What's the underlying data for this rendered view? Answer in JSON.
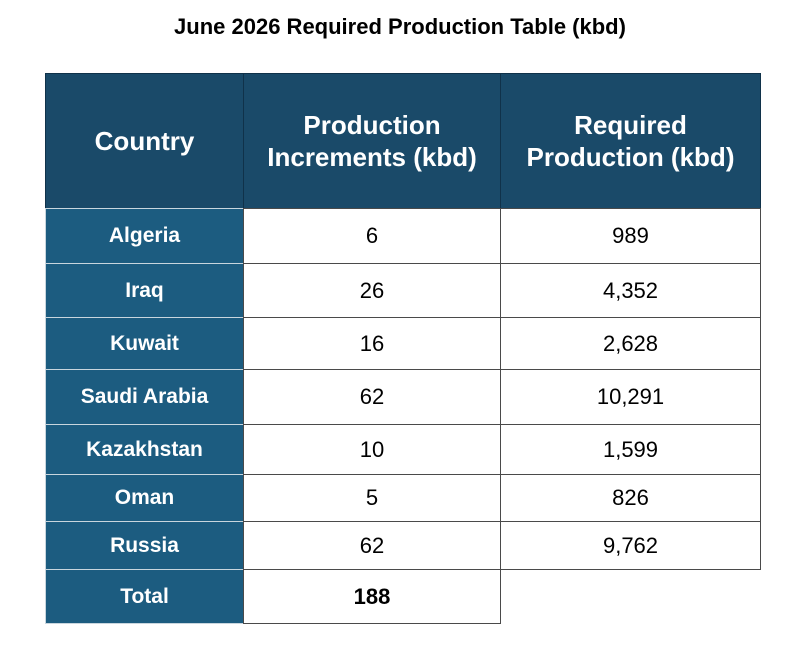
{
  "title": "June 2026 Required Production Table (kbd)",
  "table": {
    "header": [
      "Country",
      "Production Increments (kbd)",
      "Required Production (kbd)"
    ],
    "rows": [
      [
        "Algeria",
        "6",
        "989"
      ],
      [
        "Iraq",
        "26",
        "4,352"
      ],
      [
        "Kuwait",
        "16",
        "2,628"
      ],
      [
        "Saudi Arabia",
        "62",
        "10,291"
      ],
      [
        "Kazakhstan",
        "10",
        "1,599"
      ],
      [
        "Oman",
        "5",
        "826"
      ],
      [
        "Russia",
        "62",
        "9,762"
      ],
      [
        "Total",
        "188"
      ]
    ]
  }
}
